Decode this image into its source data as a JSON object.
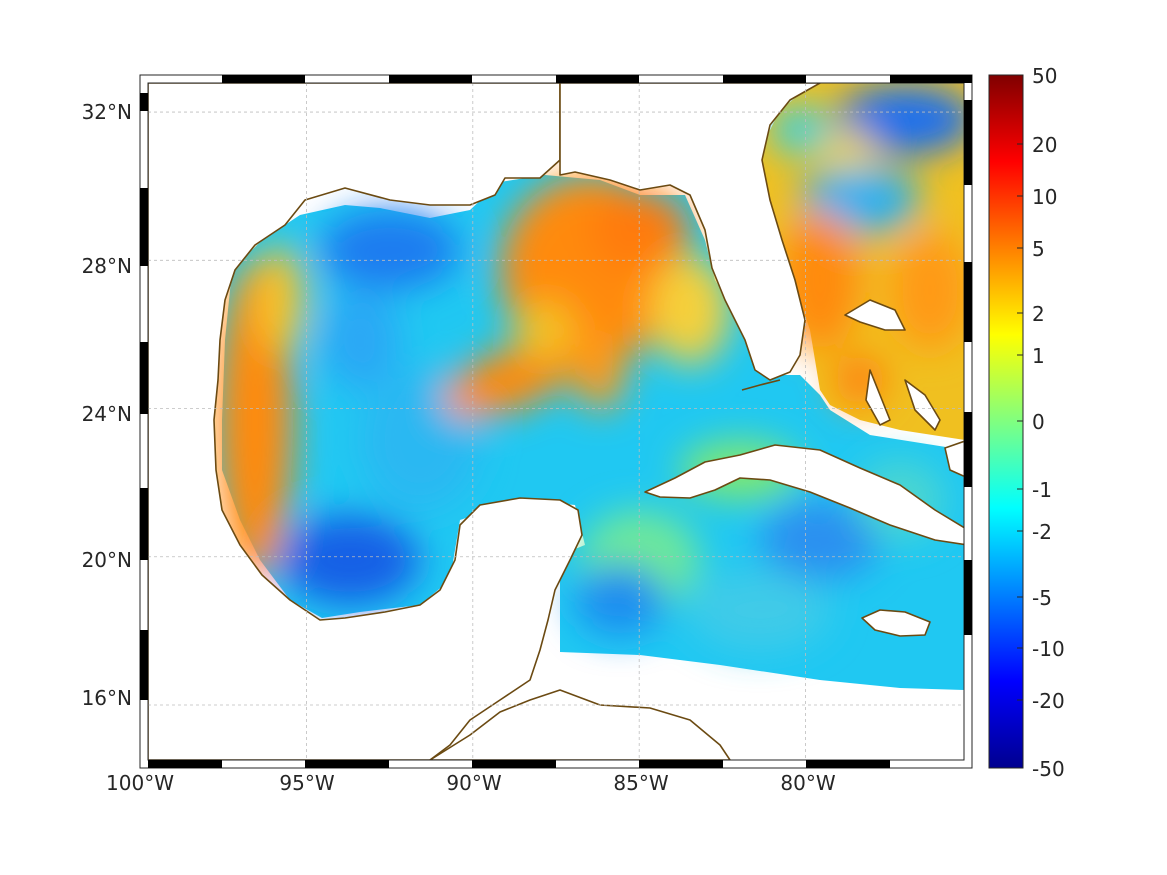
{
  "map": {
    "lon_ticks": [
      "100°W",
      "95°W",
      "90°W",
      "85°W",
      "80°W"
    ],
    "lat_ticks": [
      "32°N",
      "28°N",
      "24°N",
      "20°N",
      "16°N"
    ],
    "lon_values": [
      -100,
      -95,
      -90,
      -85,
      -80
    ],
    "lat_values": [
      32,
      28,
      24,
      20,
      16
    ],
    "extent": {
      "lon": [
        -100,
        -75
      ],
      "lat": [
        14.3,
        33
      ]
    },
    "grid": true,
    "coastline_color": "#6b4a12",
    "land_color": "#ffffff"
  },
  "colorbar": {
    "ticks": [
      "50",
      "20",
      "10",
      "5",
      "2",
      "1",
      "0",
      "-1",
      "-2",
      "-5",
      "-10",
      "-20",
      "-50"
    ],
    "colors": [
      "#00008f",
      "#0000ff",
      "#0080ff",
      "#00ffff",
      "#80ff80",
      "#ffff00",
      "#ff8000",
      "#ff0000",
      "#800000"
    ]
  }
}
